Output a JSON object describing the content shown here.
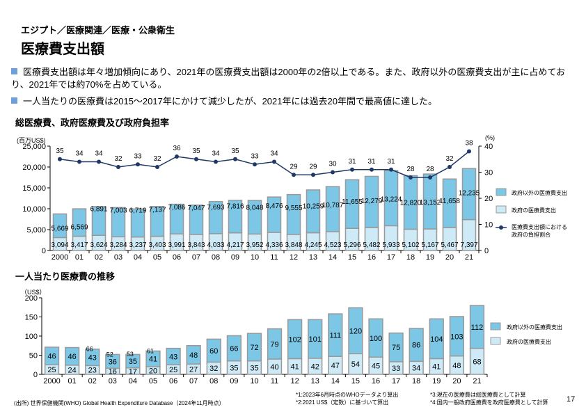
{
  "header": {
    "breadcrumb": "エジプト／医療関連／医療・公衆衛生",
    "title": "医療費支出額"
  },
  "bullets": [
    "医療費支出額は年々増加傾向にあり、2021年の医療費支出額は2000年の2倍以上である。また、政府以外の医療費支出が主に占めており、2021年では約70%を占めている。",
    "一人当たりの医療費は2015～2017年にかけて減少したが、2021年には過去20年間で最高値に達した。"
  ],
  "colors": {
    "non_gov": "#7cc6e6",
    "gov": "#cdeaf6",
    "line": "#1f3864",
    "border": "#999999"
  },
  "chart_data": [
    {
      "type": "bar",
      "title": "総医療費、政府医療費及び政府負担率",
      "ylabel": "(百万US$)",
      "y2label": "(%)",
      "ylim": [
        0,
        25000
      ],
      "yticks": [
        0,
        5000,
        10000,
        15000,
        20000,
        25000
      ],
      "y2lim": [
        0,
        40
      ],
      "y2ticks": [
        0,
        10,
        20,
        30,
        40
      ],
      "stacked": true,
      "legend": "right",
      "categories": [
        "2000",
        "01",
        "02",
        "03",
        "04",
        "05",
        "06",
        "07",
        "08",
        "09",
        "10",
        "11",
        "12",
        "13",
        "14",
        "15",
        "16",
        "17",
        "18",
        "19",
        "20",
        "21"
      ],
      "series": [
        {
          "name": "政府の医療費支出",
          "values": [
            3094,
            3417,
            3624,
            3284,
            3237,
            3403,
            3991,
            3843,
            4033,
            4217,
            3952,
            4336,
            3848,
            4245,
            4523,
            5296,
            5482,
            5933,
            5102,
            5167,
            5467,
            7397
          ]
        },
        {
          "name": "政府以外の医療費支出",
          "values": [
            5669,
            6569,
            6891,
            7003,
            6719,
            7137,
            7086,
            7047,
            7693,
            7816,
            8048,
            8476,
            9555,
            10259,
            10787,
            11655,
            12279,
            13224,
            12820,
            13152,
            11658,
            12235
          ]
        },
        {
          "name": "医療費支出額における政府の負担割合",
          "type": "line",
          "axis": "right",
          "values": [
            35,
            34,
            34,
            32,
            33,
            32,
            36,
            35,
            34,
            35,
            33,
            34,
            29,
            29,
            30,
            31,
            31,
            31,
            28,
            28,
            32,
            38
          ]
        }
      ]
    },
    {
      "type": "bar",
      "title": "一人当たり医療費の推移",
      "ylabel": "（US$）",
      "ylim": [
        0,
        200
      ],
      "yticks": [
        0,
        50,
        100,
        150,
        200
      ],
      "stacked": true,
      "legend": "right",
      "categories": [
        "2000",
        "01",
        "02",
        "03",
        "04",
        "05",
        "06",
        "07",
        "08",
        "09",
        "10",
        "11",
        "12",
        "13",
        "14",
        "15",
        "16",
        "17",
        "18",
        "19",
        "20",
        "21"
      ],
      "series": [
        {
          "name": "政府の医療費支出",
          "values": [
            25,
            24,
            23,
            16,
            17,
            20,
            25,
            27,
            32,
            35,
            35,
            40,
            41,
            42,
            47,
            54,
            45,
            33,
            34,
            41,
            48,
            68
          ]
        },
        {
          "name": "政府以外の医療費支出",
          "values": [
            46,
            46,
            43,
            36,
            35,
            41,
            43,
            48,
            60,
            66,
            72,
            79,
            102,
            101,
            111,
            120,
            100,
            75,
            86,
            104,
            103,
            112
          ]
        }
      ],
      "annotations": [
        {
          "category": "02",
          "text": "66"
        },
        {
          "category": "03",
          "text": "52"
        },
        {
          "category": "04",
          "text": "53"
        },
        {
          "category": "05",
          "text": "61"
        }
      ]
    }
  ],
  "footer": {
    "source": "(出所) 世界保健機関(WHO) Global Health Expenditure Database（2024年11月時点）",
    "notes": [
      "*1:2023年6月時点のWHOデータより算出",
      "*2:2021 US$（定数）に基づいて算出",
      "*3:現在の医療費は総医療費として計算",
      "*4:国内一般政府医療費を政府医療費として計算"
    ],
    "page": "17"
  }
}
